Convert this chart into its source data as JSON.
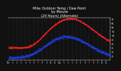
{
  "title": "Milw. Outdoor Temp / Dew Point\nby Minute\n(24 Hours) (Alternate)",
  "title_fontsize": 3.5,
  "background_color": "#111111",
  "plot_bg_color": "#111111",
  "text_color": "#ffffff",
  "temp_color": "#ff2222",
  "dew_color": "#2244ff",
  "ylim": [
    20,
    72
  ],
  "xlim": [
    0,
    1439
  ],
  "yticks": [
    25,
    30,
    35,
    40,
    45,
    50,
    55,
    60,
    65,
    70
  ],
  "xtick_positions": [
    0,
    60,
    120,
    180,
    240,
    300,
    360,
    420,
    480,
    540,
    600,
    660,
    720,
    780,
    840,
    900,
    960,
    1020,
    1080,
    1140,
    1200,
    1260,
    1320,
    1380
  ],
  "xtick_labels": [
    "12a",
    "1",
    "2",
    "3",
    "4",
    "5",
    "6",
    "7",
    "8",
    "9",
    "10",
    "11",
    "12p",
    "1",
    "2",
    "3",
    "4",
    "5",
    "6",
    "7",
    "8",
    "9",
    "10",
    "11"
  ],
  "grid_color": "#555555",
  "dot_size": 0.18,
  "temp_points": {
    "midnight_start": 35,
    "predawn_low": 30,
    "predawn_low_hour": 5.5,
    "peak": 65,
    "peak_hour": 14.5,
    "midnight_end": 44
  },
  "dew_points": {
    "midnight_start": 22,
    "predawn_low": 18,
    "predawn_low_hour": 6,
    "peak": 48,
    "peak_hour": 13.5,
    "midnight_end": 32
  }
}
